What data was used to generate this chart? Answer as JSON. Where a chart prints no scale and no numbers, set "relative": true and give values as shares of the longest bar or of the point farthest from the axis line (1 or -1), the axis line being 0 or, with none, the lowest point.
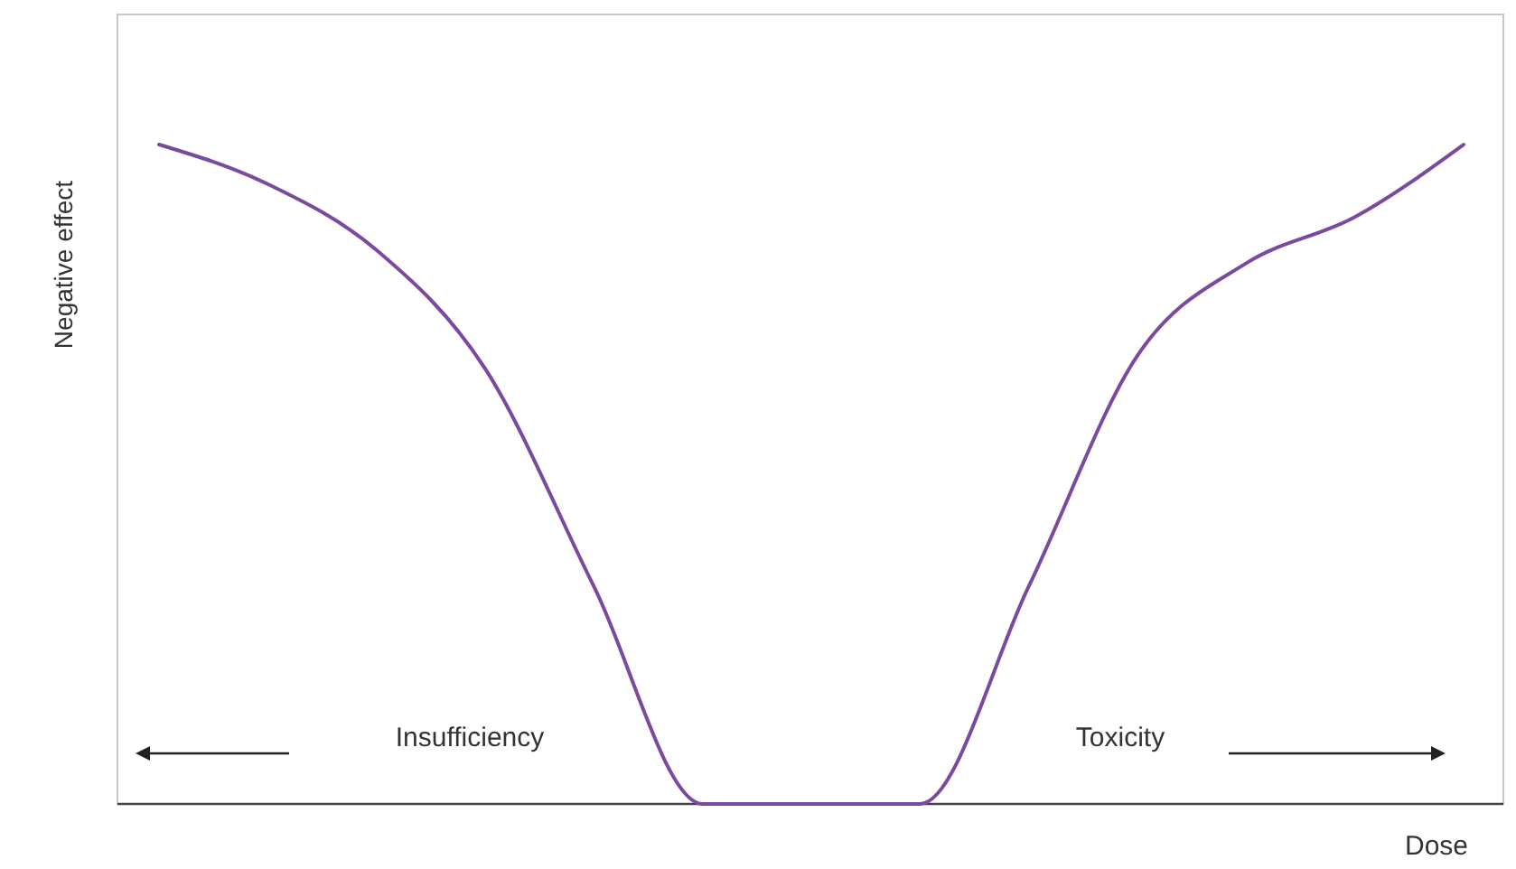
{
  "chart_data": {
    "type": "line",
    "relative": true,
    "xlabel": "Dose",
    "ylabel": "Negative effect",
    "categories": [
      null,
      null,
      null,
      null,
      null,
      null,
      null,
      null,
      null,
      null,
      null,
      null,
      null
    ],
    "series": [
      {
        "color": "#7b4a9e",
        "values": [
          1,
          0.94,
          0.84,
          0.66,
          0.33,
          0,
          0,
          0,
          0.33,
          0.68,
          0.82,
          0.89,
          1
        ]
      }
    ],
    "annotations": [
      "Insufficiency",
      "Toxicity"
    ]
  }
}
